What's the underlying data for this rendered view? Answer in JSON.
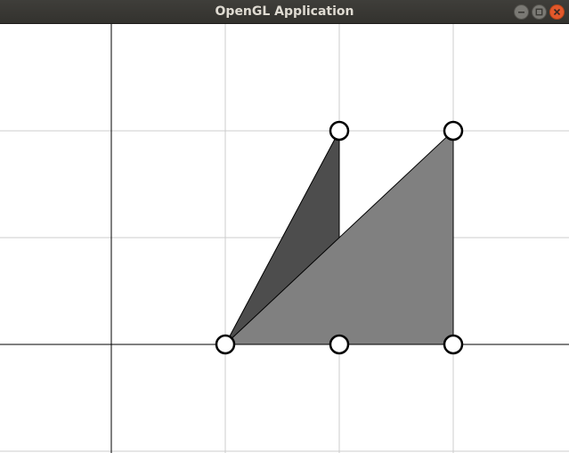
{
  "window": {
    "title": "OpenGL Application",
    "controls": [
      "minimize",
      "maximize",
      "close"
    ],
    "colors": {
      "titlebar": "#3a3935",
      "title_text": "#dfdbd2",
      "close": "#e2582b",
      "minmax": "#7a7974"
    }
  },
  "scene": {
    "background": "#ffffff",
    "grid": {
      "major_axes_color": "#000000",
      "minor_color": "#cccccc"
    },
    "triangles": [
      {
        "name": "dark-triangle",
        "fill": "#4d4d4d",
        "vertices": [
          [
            1,
            0
          ],
          [
            2,
            0
          ],
          [
            2,
            2
          ]
        ]
      },
      {
        "name": "light-triangle",
        "fill": "#808080",
        "vertices": [
          [
            1,
            0
          ],
          [
            3,
            0
          ],
          [
            3,
            2
          ]
        ]
      }
    ],
    "control_points": [
      [
        1,
        0
      ],
      [
        2,
        0
      ],
      [
        2,
        2
      ],
      [
        3,
        0
      ],
      [
        3,
        2
      ]
    ]
  }
}
